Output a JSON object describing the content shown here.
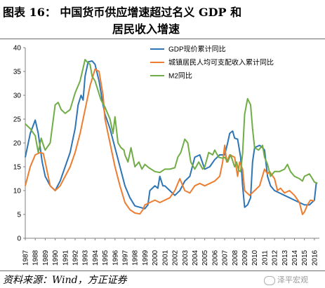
{
  "title": {
    "line1": "图表 16：    中国货币供应增速超过名义 GDP 和",
    "line2": "居民收入增速"
  },
  "source": "资料来源：Wind，方正证券",
  "watermark": "泽平宏观",
  "colors": {
    "gdp": "#2e75b6",
    "income": "#ed7d31",
    "m2": "#70ad47"
  },
  "chart_data": {
    "type": "line",
    "title": "",
    "xlabel": "",
    "ylabel": "",
    "xlim": [
      1987,
      2016
    ],
    "ylim": [
      0,
      40
    ],
    "yticks": [
      0,
      5,
      10,
      15,
      20,
      25,
      30,
      35,
      40
    ],
    "categories": [
      "1987",
      "1988",
      "1989",
      "1990",
      "1991",
      "1992",
      "1993",
      "1994",
      "1995",
      "1996",
      "1997",
      "1998",
      "1999",
      "2000",
      "2001",
      "2002",
      "2003",
      "2004",
      "2005",
      "2006",
      "2007",
      "2008",
      "2009",
      "2010",
      "2011",
      "2012",
      "2013",
      "2014",
      "2015",
      "2016"
    ],
    "legend_position": "top-right",
    "grid": false,
    "series": [
      {
        "name": "GDP现价累计同比",
        "color": "#2e75b6",
        "points": [
          [
            1987,
            17
          ],
          [
            1987.5,
            22
          ],
          [
            1988,
            24.8
          ],
          [
            1988.3,
            22
          ],
          [
            1988.7,
            16
          ],
          [
            1989,
            13
          ],
          [
            1989.5,
            11
          ],
          [
            1990,
            10
          ],
          [
            1990.5,
            12
          ],
          [
            1991,
            15
          ],
          [
            1991.5,
            18
          ],
          [
            1992,
            23
          ],
          [
            1992.3,
            28
          ],
          [
            1992.6,
            30
          ],
          [
            1992.8,
            29
          ],
          [
            1993,
            34
          ],
          [
            1993.3,
            37
          ],
          [
            1993.7,
            37.2
          ],
          [
            1994,
            36.5
          ],
          [
            1994.4,
            33
          ],
          [
            1994.8,
            28
          ],
          [
            1995,
            26
          ],
          [
            1995.5,
            23
          ],
          [
            1996,
            19
          ],
          [
            1996.5,
            15
          ],
          [
            1997,
            11
          ],
          [
            1997.5,
            8.5
          ],
          [
            1998,
            6.8
          ],
          [
            1998.5,
            6.5
          ],
          [
            1999,
            6.2
          ],
          [
            1999.3,
            7
          ],
          [
            1999.5,
            10
          ],
          [
            2000,
            11
          ],
          [
            2000.3,
            10.5
          ],
          [
            2000.5,
            13
          ],
          [
            2000.8,
            11
          ],
          [
            2001,
            11
          ],
          [
            2001.5,
            10
          ],
          [
            2002,
            9
          ],
          [
            2002.5,
            10
          ],
          [
            2003,
            12
          ],
          [
            2003.5,
            13
          ],
          [
            2004,
            17
          ],
          [
            2004.5,
            17.5
          ],
          [
            2005,
            14.5
          ],
          [
            2005.5,
            15
          ],
          [
            2006,
            16.5
          ],
          [
            2006.5,
            17.5
          ],
          [
            2007,
            17.5
          ],
          [
            2007.3,
            20
          ],
          [
            2007.5,
            22
          ],
          [
            2007.8,
            22.5
          ],
          [
            2008,
            21
          ],
          [
            2008.3,
            20.8
          ],
          [
            2008.6,
            17
          ],
          [
            2008.8,
            11
          ],
          [
            2009,
            6.5
          ],
          [
            2009.3,
            7
          ],
          [
            2009.6,
            8.5
          ],
          [
            2009.8,
            16
          ],
          [
            2010,
            19
          ],
          [
            2010.5,
            19.5
          ],
          [
            2010.8,
            19
          ],
          [
            2011,
            18.5
          ],
          [
            2011.3,
            13
          ],
          [
            2011.6,
            11
          ],
          [
            2012,
            10
          ],
          [
            2012.5,
            9.5
          ],
          [
            2013,
            9
          ],
          [
            2013.5,
            8.5
          ],
          [
            2014,
            8
          ],
          [
            2014.5,
            7.5
          ],
          [
            2015,
            7
          ],
          [
            2015.5,
            7
          ],
          [
            2016,
            8
          ],
          [
            2016.2,
            11.8
          ]
        ]
      },
      {
        "name": "城镇居民人均可支配收入累计同比",
        "color": "#ed7d31",
        "points": [
          [
            1987,
            11
          ],
          [
            1987.5,
            15
          ],
          [
            1988,
            17.5
          ],
          [
            1988.5,
            18
          ],
          [
            1988.8,
            17.8
          ],
          [
            1989,
            16
          ],
          [
            1989.5,
            11
          ],
          [
            1990,
            10
          ],
          [
            1990.5,
            11
          ],
          [
            1991,
            13
          ],
          [
            1991.5,
            15
          ],
          [
            1992,
            18
          ],
          [
            1992.5,
            22
          ],
          [
            1993,
            27
          ],
          [
            1993.5,
            32
          ],
          [
            1994,
            35.5
          ],
          [
            1994.4,
            35
          ],
          [
            1994.8,
            30
          ],
          [
            1995,
            25
          ],
          [
            1995.5,
            20
          ],
          [
            1996,
            15
          ],
          [
            1996.5,
            11
          ],
          [
            1997,
            7.5
          ],
          [
            1997.5,
            6
          ],
          [
            1998,
            5.3
          ],
          [
            1998.5,
            5.1
          ],
          [
            1998.8,
            6
          ],
          [
            1999,
            7
          ],
          [
            1999.5,
            7.5
          ],
          [
            2000,
            8
          ],
          [
            2000.5,
            7.5
          ],
          [
            2001,
            8
          ],
          [
            2001.5,
            8.5
          ],
          [
            2002,
            10
          ],
          [
            2002.5,
            12.5
          ],
          [
            2003,
            10
          ],
          [
            2003.5,
            9.5
          ],
          [
            2004,
            11
          ],
          [
            2004.5,
            11.5
          ],
          [
            2005,
            11
          ],
          [
            2005.5,
            11.5
          ],
          [
            2006,
            12
          ],
          [
            2006.5,
            13
          ],
          [
            2006.8,
            16
          ],
          [
            2007,
            19.5
          ],
          [
            2007.2,
            16
          ],
          [
            2007.5,
            17.5
          ],
          [
            2008,
            17
          ],
          [
            2008.3,
            13
          ],
          [
            2008.5,
            16
          ],
          [
            2008.8,
            14.5
          ],
          [
            2009,
            10
          ],
          [
            2009.5,
            9
          ],
          [
            2010,
            10
          ],
          [
            2010.5,
            11
          ],
          [
            2011,
            14.5
          ],
          [
            2011.3,
            13.5
          ],
          [
            2011.5,
            14
          ],
          [
            2012,
            12.5
          ],
          [
            2012.3,
            10
          ],
          [
            2012.6,
            10.5
          ],
          [
            2013,
            9.5
          ],
          [
            2013.5,
            10
          ],
          [
            2014,
            9
          ],
          [
            2014.5,
            7.5
          ],
          [
            2014.8,
            5
          ],
          [
            2015,
            5.5
          ],
          [
            2015.3,
            7
          ],
          [
            2015.6,
            8
          ],
          [
            2016,
            7.8
          ]
        ]
      },
      {
        "name": "M2同比",
        "color": "#70ad47",
        "points": [
          [
            1987,
            24
          ],
          [
            1987.5,
            23
          ],
          [
            1988,
            21.5
          ],
          [
            1988.3,
            18
          ],
          [
            1988.6,
            21
          ],
          [
            1988.9,
            19
          ],
          [
            1989,
            18.5
          ],
          [
            1989.5,
            20
          ],
          [
            1990,
            28
          ],
          [
            1990.3,
            28.5
          ],
          [
            1990.6,
            27
          ],
          [
            1991,
            26.2
          ],
          [
            1991.5,
            27
          ],
          [
            1992,
            30.5
          ],
          [
            1992.3,
            32
          ],
          [
            1992.5,
            33
          ],
          [
            1993,
            37.5
          ],
          [
            1993.2,
            37
          ],
          [
            1993.5,
            36.5
          ],
          [
            1993.7,
            34
          ],
          [
            1994,
            33
          ],
          [
            1994.3,
            31
          ],
          [
            1994.6,
            29
          ],
          [
            1995,
            27.5
          ],
          [
            1995.5,
            25
          ],
          [
            1995.8,
            22
          ],
          [
            1996,
            25.5
          ],
          [
            1996.3,
            20
          ],
          [
            1996.6,
            19
          ],
          [
            1996.9,
            18.5
          ],
          [
            1997,
            17.5
          ],
          [
            1997.3,
            16
          ],
          [
            1997.6,
            19
          ],
          [
            1998,
            15
          ],
          [
            1998.4,
            16
          ],
          [
            1998.7,
            14.5
          ],
          [
            1999,
            15.5
          ],
          [
            1999.4,
            14.8
          ],
          [
            2000,
            14
          ],
          [
            2000.5,
            13.8
          ],
          [
            2001,
            14.5
          ],
          [
            2001.5,
            14.5
          ],
          [
            2002,
            14.8
          ],
          [
            2002.3,
            17
          ],
          [
            2002.6,
            18
          ],
          [
            2003,
            20.8
          ],
          [
            2003.3,
            20
          ],
          [
            2003.6,
            16
          ],
          [
            2004,
            14.5
          ],
          [
            2004.4,
            16
          ],
          [
            2004.8,
            14.5
          ],
          [
            2005,
            15
          ],
          [
            2005.4,
            18
          ],
          [
            2005.8,
            17.5
          ],
          [
            2006,
            18.5
          ],
          [
            2006.4,
            17
          ],
          [
            2006.8,
            16.8
          ],
          [
            2007,
            17
          ],
          [
            2007.3,
            16
          ],
          [
            2007.6,
            17.5
          ],
          [
            2008,
            15
          ],
          [
            2008.2,
            16
          ],
          [
            2008.4,
            14.2
          ],
          [
            2008.6,
            14
          ],
          [
            2008.8,
            17.8
          ],
          [
            2009,
            26
          ],
          [
            2009.3,
            29.3
          ],
          [
            2009.6,
            28
          ],
          [
            2009.8,
            23
          ],
          [
            2010,
            19
          ],
          [
            2010.4,
            18.5
          ],
          [
            2010.8,
            19.5
          ],
          [
            2011,
            17
          ],
          [
            2011.3,
            15.5
          ],
          [
            2011.6,
            13
          ],
          [
            2012,
            14
          ],
          [
            2012.5,
            14
          ],
          [
            2013,
            14.5
          ],
          [
            2013.3,
            15.5
          ],
          [
            2013.6,
            14
          ],
          [
            2014,
            13
          ],
          [
            2014.5,
            12.5
          ],
          [
            2014.8,
            12
          ],
          [
            2015,
            13
          ],
          [
            2015.5,
            13.5
          ],
          [
            2015.8,
            12.5
          ],
          [
            2016,
            11.8
          ],
          [
            2016.3,
            11.5
          ]
        ]
      }
    ]
  }
}
